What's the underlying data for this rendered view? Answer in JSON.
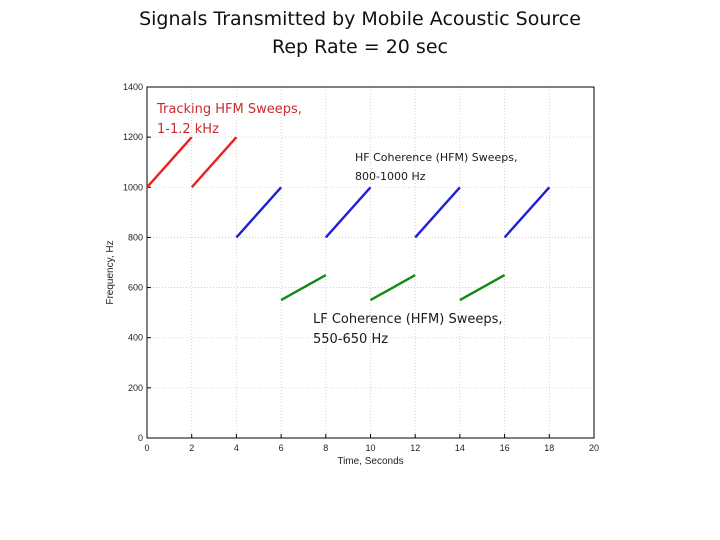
{
  "title": {
    "line1": "Signals Transmitted by Mobile Acoustic Source",
    "line2": "Rep Rate = 20 sec"
  },
  "annotations": [
    {
      "key": "tracking",
      "line1": "Tracking HFM Sweeps,",
      "line2": "1-1.2 kHz",
      "color": "#cc2b2b"
    },
    {
      "key": "hf",
      "line1": "HF Coherence (HFM) Sweeps,",
      "line2": "800-1000 Hz",
      "color": "#1a1a1a"
    },
    {
      "key": "lf",
      "line1": "LF Coherence (HFM) Sweeps,",
      "line2": "550-650 Hz",
      "color": "#1a1a1a"
    }
  ],
  "chart_data": {
    "type": "line",
    "xlabel": "Time, Seconds",
    "ylabel": "Frequency, Hz",
    "xlim": [
      0,
      20
    ],
    "ylim": [
      0,
      1400
    ],
    "xticks": [
      0,
      2,
      4,
      6,
      8,
      10,
      12,
      14,
      16,
      18,
      20
    ],
    "yticks": [
      0,
      200,
      400,
      600,
      800,
      1000,
      1200,
      1400
    ],
    "grid": true,
    "series": [
      {
        "color": "#e8231f",
        "segments": [
          [
            [
              0,
              1000
            ],
            [
              2,
              1200
            ]
          ],
          [
            [
              2,
              1000
            ],
            [
              4,
              1200
            ]
          ]
        ]
      },
      {
        "color": "#1f1fd6",
        "segments": [
          [
            [
              4,
              800
            ],
            [
              6,
              1000
            ]
          ],
          [
            [
              8,
              800
            ],
            [
              10,
              1000
            ]
          ],
          [
            [
              12,
              800
            ],
            [
              14,
              1000
            ]
          ],
          [
            [
              16,
              800
            ],
            [
              18,
              1000
            ]
          ]
        ]
      },
      {
        "color": "#138a13",
        "segments": [
          [
            [
              6,
              550
            ],
            [
              8,
              650
            ]
          ],
          [
            [
              10,
              550
            ],
            [
              12,
              650
            ]
          ],
          [
            [
              14,
              550
            ],
            [
              16,
              650
            ]
          ]
        ]
      }
    ]
  }
}
